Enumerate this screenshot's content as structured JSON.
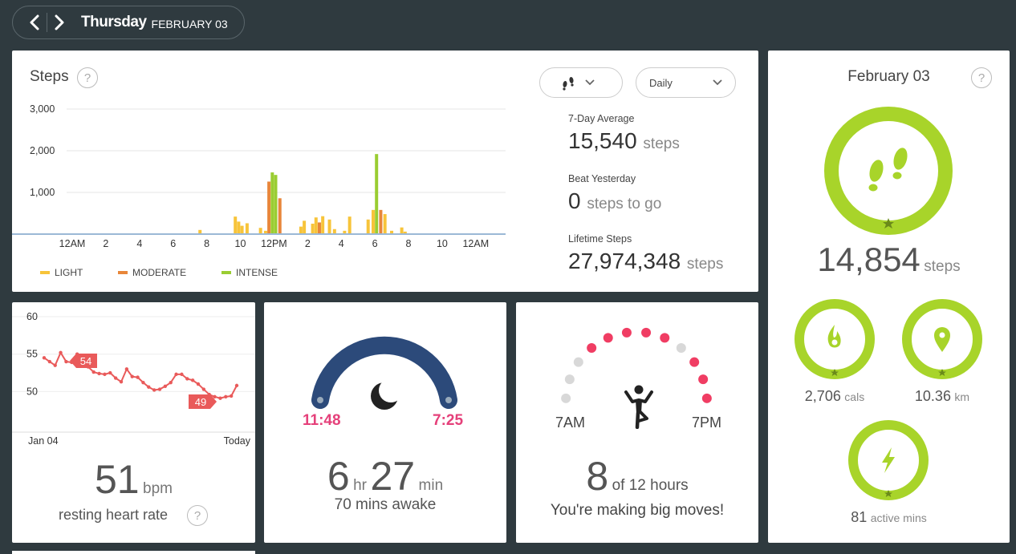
{
  "header": {
    "day": "Thursday",
    "date": "FEBRUARY 03"
  },
  "colors": {
    "light": "#f7c43a",
    "moderate": "#e8863a",
    "intense": "#9acd32",
    "ring": "#a8d42a",
    "sleep_arc": "#2c4a7a",
    "time_pink": "#e5407a",
    "hr_line": "#e95a5a",
    "hour_met": "#f03d63",
    "hour_unmet": "#d8d8d8"
  },
  "steps_card": {
    "title": "Steps",
    "help": "?",
    "type_icon": "footsteps-icon",
    "period": "Daily",
    "stats": {
      "avg_label": "7-Day Average",
      "avg_value": "15,540",
      "avg_unit": "steps",
      "beat_label": "Beat Yesterday",
      "beat_value": "0",
      "beat_unit": "steps to go",
      "life_label": "Lifetime Steps",
      "life_value": "27,974,348",
      "life_unit": "steps"
    },
    "legend": {
      "light": "LIGHT",
      "moderate": "MODERATE",
      "intense": "INTENSE"
    }
  },
  "chart_data": {
    "type": "bar",
    "y_ticks": [
      "3,000",
      "2,000",
      "1,000"
    ],
    "x_ticks": [
      "12AM",
      "2",
      "4",
      "6",
      "8",
      "10",
      "12PM",
      "2",
      "4",
      "6",
      "8",
      "10",
      "12AM"
    ],
    "ylim": [
      0,
      3000
    ],
    "bars": [
      {
        "h": 7.6,
        "v": 100,
        "c": "light"
      },
      {
        "h": 9.7,
        "v": 420,
        "c": "light"
      },
      {
        "h": 9.9,
        "v": 300,
        "c": "light"
      },
      {
        "h": 10.1,
        "v": 200,
        "c": "light"
      },
      {
        "h": 10.4,
        "v": 260,
        "c": "light"
      },
      {
        "h": 11.2,
        "v": 150,
        "c": "light"
      },
      {
        "h": 11.5,
        "v": 80,
        "c": "light"
      },
      {
        "h": 11.7,
        "v": 1260,
        "c": "moderate"
      },
      {
        "h": 11.9,
        "v": 1480,
        "c": "intense"
      },
      {
        "h": 12.1,
        "v": 1420,
        "c": "intense"
      },
      {
        "h": 12.35,
        "v": 860,
        "c": "moderate"
      },
      {
        "h": 13.6,
        "v": 180,
        "c": "light"
      },
      {
        "h": 13.8,
        "v": 320,
        "c": "light"
      },
      {
        "h": 14.3,
        "v": 250,
        "c": "light"
      },
      {
        "h": 14.5,
        "v": 400,
        "c": "light"
      },
      {
        "h": 14.7,
        "v": 280,
        "c": "moderate"
      },
      {
        "h": 14.9,
        "v": 430,
        "c": "light"
      },
      {
        "h": 15.3,
        "v": 350,
        "c": "light"
      },
      {
        "h": 15.6,
        "v": 120,
        "c": "light"
      },
      {
        "h": 16.2,
        "v": 80,
        "c": "light"
      },
      {
        "h": 16.5,
        "v": 420,
        "c": "light"
      },
      {
        "h": 17.6,
        "v": 350,
        "c": "light"
      },
      {
        "h": 17.9,
        "v": 580,
        "c": "light"
      },
      {
        "h": 18.1,
        "v": 1920,
        "c": "intense"
      },
      {
        "h": 18.35,
        "v": 580,
        "c": "moderate"
      },
      {
        "h": 18.6,
        "v": 480,
        "c": "light"
      },
      {
        "h": 19.0,
        "v": 80,
        "c": "light"
      },
      {
        "h": 19.6,
        "v": 160,
        "c": "light"
      },
      {
        "h": 19.8,
        "v": 60,
        "c": "light"
      }
    ]
  },
  "heart_card": {
    "y_ticks": [
      "60",
      "55",
      "50"
    ],
    "x_start": "Jan 04",
    "x_end": "Today",
    "callout_high": "54",
    "callout_low": "49",
    "series": [
      54.5,
      54.0,
      53.5,
      55.2,
      54.0,
      53.9,
      55.0,
      53.8,
      53.3,
      52.6,
      52.4,
      52.3,
      52.5,
      51.8,
      51.3,
      53.0,
      52.0,
      51.9,
      51.2,
      50.6,
      50.2,
      50.3,
      50.7,
      51.2,
      52.3,
      52.3,
      51.7,
      51.5,
      51.0,
      50.3,
      49.6,
      49.3,
      49.1,
      49.3,
      49.4,
      50.8
    ],
    "value": "51",
    "unit": "bpm",
    "label": "resting heart rate",
    "help": "?"
  },
  "sleep_card": {
    "start": "11:48",
    "end": "7:25",
    "hours": "6",
    "hr_unit": "hr",
    "minutes": "27",
    "min_unit": "min",
    "awake": "70 mins awake"
  },
  "hourly_card": {
    "start_label": "7AM",
    "end_label": "7PM",
    "hours": [
      false,
      false,
      false,
      true,
      true,
      true,
      true,
      true,
      false,
      true,
      true,
      true
    ],
    "value": "8",
    "of_text": "of 12 hours",
    "message": "You're making big moves!"
  },
  "right_card": {
    "date": "February 03",
    "help": "?",
    "steps_value": "14,854",
    "steps_unit": "steps",
    "steps_progress": 1.0,
    "cals_value": "2,706",
    "cals_unit": "cals",
    "dist_value": "10.36",
    "dist_unit": "km",
    "active_value": "81",
    "active_unit": "active mins"
  }
}
